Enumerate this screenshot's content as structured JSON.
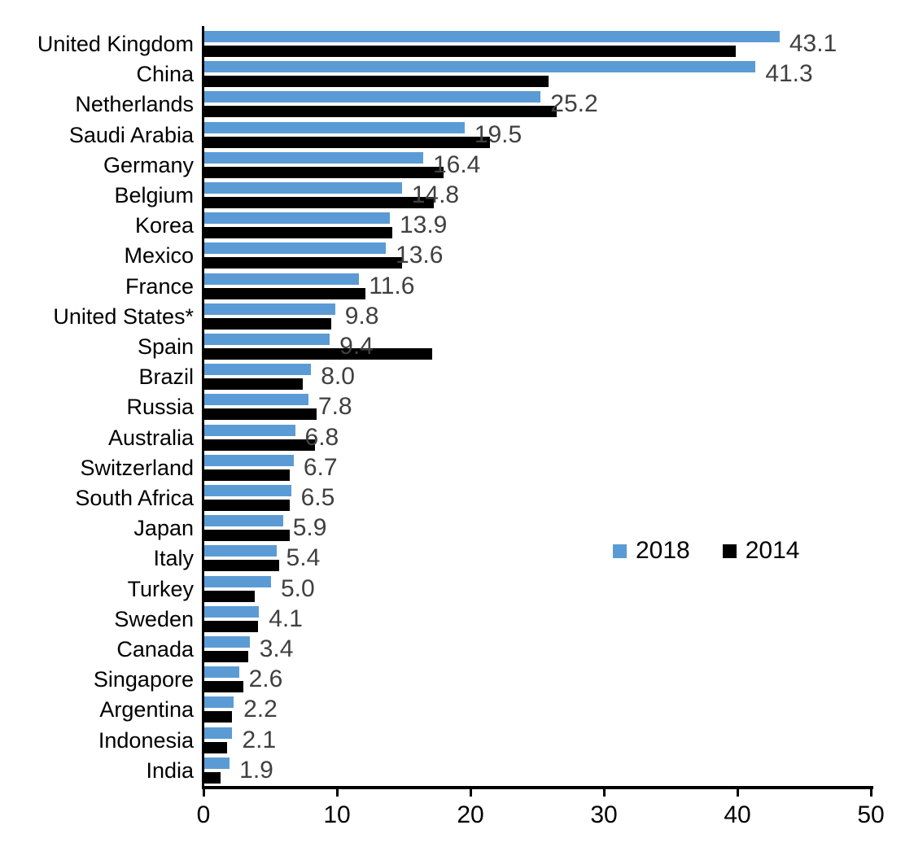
{
  "chart_data": {
    "type": "bar",
    "orientation": "horizontal",
    "title": "",
    "xlabel": "",
    "ylabel": "",
    "xlim": [
      0,
      50
    ],
    "x_ticks": [
      "0",
      "10",
      "20",
      "30",
      "40",
      "50"
    ],
    "grid": false,
    "legend_position": "middle-right",
    "categories": [
      "United Kingdom",
      "China",
      "Netherlands",
      "Saudi Arabia",
      "Germany",
      "Belgium",
      "Korea",
      "Mexico",
      "France",
      "United States*",
      "Spain",
      "Brazil",
      "Russia",
      "Australia",
      "Switzerland",
      "South Africa",
      "Japan",
      "Italy",
      "Turkey",
      "Sweden",
      "Canada",
      "Singapore",
      "Argentina",
      "Indonesia",
      "India"
    ],
    "series": [
      {
        "name": "2018",
        "color": "#5B9BD5",
        "values": [
          43.1,
          41.3,
          25.2,
          19.5,
          16.4,
          14.8,
          13.9,
          13.6,
          11.6,
          9.8,
          9.4,
          8.0,
          7.8,
          6.8,
          6.7,
          6.5,
          5.9,
          5.4,
          5.0,
          4.1,
          3.4,
          2.6,
          2.2,
          2.1,
          1.9
        ]
      },
      {
        "name": "2014",
        "color": "#000000",
        "values": [
          39.8,
          25.8,
          26.4,
          21.4,
          17.9,
          17.2,
          14.1,
          14.8,
          12.1,
          9.5,
          17.1,
          7.4,
          8.4,
          8.3,
          6.4,
          6.4,
          6.4,
          5.6,
          3.8,
          4.0,
          3.3,
          2.9,
          2.1,
          1.7,
          1.2
        ]
      }
    ],
    "value_labels": [
      "43.1",
      "41.3",
      "25.2",
      "19.5",
      "16.4",
      "14.8",
      "13.9",
      "13.6",
      "11.6",
      "9.8",
      "9.4",
      "8.0",
      "7.8",
      "6.8",
      "6.7",
      "6.5",
      "5.9",
      "5.4",
      "5.0",
      "4.1",
      "3.4",
      "2.6",
      "2.2",
      "2.1",
      "1.9"
    ],
    "value_labels_series": "2018"
  },
  "colors": {
    "value_label": "#404040",
    "axis": "#000000",
    "background": "#FFFFFF"
  }
}
